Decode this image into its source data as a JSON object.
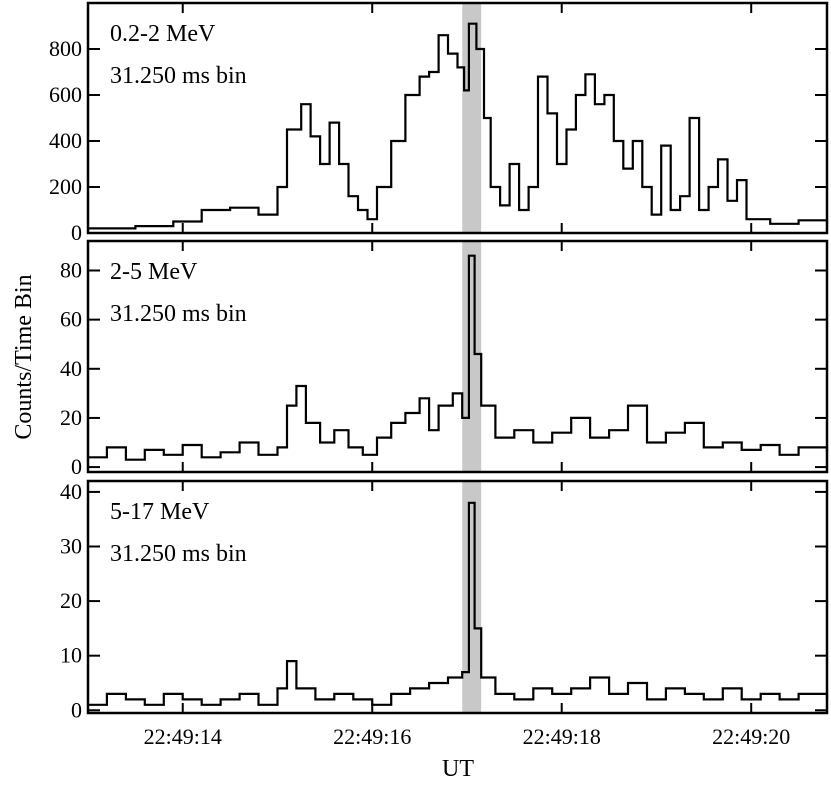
{
  "chart_data": {
    "type": "line",
    "y_axis_label": "Counts/Time Bin",
    "x_axis_label": "UT",
    "x_tick_labels": [
      "22:49:14",
      "22:49:16",
      "22:49:18",
      "22:49:20"
    ],
    "x_ticks_seconds": [
      14,
      16,
      18,
      20
    ],
    "x_range_seconds": [
      13.0,
      20.8
    ],
    "highlight_band_seconds": [
      16.95,
      17.15
    ],
    "highlight_color": "#c8c8c8",
    "line_color": "#000000",
    "panels": [
      {
        "energy_label": "0.2-2 MeV",
        "bin_label": "31.250 ms bin",
        "ylim": [
          0,
          1000
        ],
        "y_ticks": [
          0,
          200,
          400,
          600,
          800
        ],
        "series": [
          {
            "x": 13.0,
            "y": 20
          },
          {
            "x": 13.5,
            "y": 30
          },
          {
            "x": 13.9,
            "y": 50
          },
          {
            "x": 14.2,
            "y": 100
          },
          {
            "x": 14.5,
            "y": 110
          },
          {
            "x": 14.8,
            "y": 80
          },
          {
            "x": 15.0,
            "y": 200
          },
          {
            "x": 15.1,
            "y": 450
          },
          {
            "x": 15.25,
            "y": 560
          },
          {
            "x": 15.35,
            "y": 420
          },
          {
            "x": 15.45,
            "y": 300
          },
          {
            "x": 15.55,
            "y": 480
          },
          {
            "x": 15.65,
            "y": 300
          },
          {
            "x": 15.75,
            "y": 160
          },
          {
            "x": 15.85,
            "y": 100
          },
          {
            "x": 15.95,
            "y": 60
          },
          {
            "x": 16.05,
            "y": 200
          },
          {
            "x": 16.2,
            "y": 400
          },
          {
            "x": 16.35,
            "y": 600
          },
          {
            "x": 16.5,
            "y": 680
          },
          {
            "x": 16.6,
            "y": 700
          },
          {
            "x": 16.7,
            "y": 860
          },
          {
            "x": 16.8,
            "y": 780
          },
          {
            "x": 16.9,
            "y": 720
          },
          {
            "x": 16.97,
            "y": 620
          },
          {
            "x": 17.02,
            "y": 910
          },
          {
            "x": 17.1,
            "y": 800
          },
          {
            "x": 17.18,
            "y": 500
          },
          {
            "x": 17.25,
            "y": 200
          },
          {
            "x": 17.35,
            "y": 120
          },
          {
            "x": 17.45,
            "y": 300
          },
          {
            "x": 17.55,
            "y": 100
          },
          {
            "x": 17.65,
            "y": 200
          },
          {
            "x": 17.75,
            "y": 680
          },
          {
            "x": 17.85,
            "y": 520
          },
          {
            "x": 17.95,
            "y": 300
          },
          {
            "x": 18.05,
            "y": 450
          },
          {
            "x": 18.15,
            "y": 600
          },
          {
            "x": 18.25,
            "y": 690
          },
          {
            "x": 18.35,
            "y": 560
          },
          {
            "x": 18.45,
            "y": 600
          },
          {
            "x": 18.55,
            "y": 400
          },
          {
            "x": 18.65,
            "y": 280
          },
          {
            "x": 18.75,
            "y": 400
          },
          {
            "x": 18.85,
            "y": 200
          },
          {
            "x": 18.95,
            "y": 80
          },
          {
            "x": 19.05,
            "y": 380
          },
          {
            "x": 19.15,
            "y": 100
          },
          {
            "x": 19.25,
            "y": 160
          },
          {
            "x": 19.35,
            "y": 500
          },
          {
            "x": 19.45,
            "y": 100
          },
          {
            "x": 19.55,
            "y": 200
          },
          {
            "x": 19.65,
            "y": 320
          },
          {
            "x": 19.75,
            "y": 140
          },
          {
            "x": 19.85,
            "y": 230
          },
          {
            "x": 19.95,
            "y": 60
          },
          {
            "x": 20.2,
            "y": 40
          },
          {
            "x": 20.5,
            "y": 55
          },
          {
            "x": 20.8,
            "y": 40
          }
        ]
      },
      {
        "energy_label": "2-5 MeV",
        "bin_label": "31.250 ms bin",
        "ylim": [
          -2,
          92
        ],
        "y_ticks": [
          0,
          20,
          40,
          60,
          80
        ],
        "series": [
          {
            "x": 13.0,
            "y": 4
          },
          {
            "x": 13.2,
            "y": 8
          },
          {
            "x": 13.4,
            "y": 3
          },
          {
            "x": 13.6,
            "y": 7
          },
          {
            "x": 13.8,
            "y": 5
          },
          {
            "x": 14.0,
            "y": 9
          },
          {
            "x": 14.2,
            "y": 4
          },
          {
            "x": 14.4,
            "y": 6
          },
          {
            "x": 14.6,
            "y": 10
          },
          {
            "x": 14.8,
            "y": 5
          },
          {
            "x": 15.0,
            "y": 8
          },
          {
            "x": 15.1,
            "y": 25
          },
          {
            "x": 15.2,
            "y": 33
          },
          {
            "x": 15.3,
            "y": 18
          },
          {
            "x": 15.45,
            "y": 10
          },
          {
            "x": 15.6,
            "y": 15
          },
          {
            "x": 15.75,
            "y": 8
          },
          {
            "x": 15.9,
            "y": 5
          },
          {
            "x": 16.05,
            "y": 12
          },
          {
            "x": 16.2,
            "y": 18
          },
          {
            "x": 16.35,
            "y": 22
          },
          {
            "x": 16.5,
            "y": 28
          },
          {
            "x": 16.6,
            "y": 15
          },
          {
            "x": 16.7,
            "y": 25
          },
          {
            "x": 16.85,
            "y": 30
          },
          {
            "x": 16.95,
            "y": 20
          },
          {
            "x": 17.02,
            "y": 86
          },
          {
            "x": 17.08,
            "y": 46
          },
          {
            "x": 17.15,
            "y": 25
          },
          {
            "x": 17.3,
            "y": 12
          },
          {
            "x": 17.5,
            "y": 15
          },
          {
            "x": 17.7,
            "y": 10
          },
          {
            "x": 17.9,
            "y": 14
          },
          {
            "x": 18.1,
            "y": 20
          },
          {
            "x": 18.3,
            "y": 12
          },
          {
            "x": 18.5,
            "y": 15
          },
          {
            "x": 18.7,
            "y": 25
          },
          {
            "x": 18.9,
            "y": 10
          },
          {
            "x": 19.1,
            "y": 14
          },
          {
            "x": 19.3,
            "y": 18
          },
          {
            "x": 19.5,
            "y": 8
          },
          {
            "x": 19.7,
            "y": 10
          },
          {
            "x": 19.9,
            "y": 7
          },
          {
            "x": 20.1,
            "y": 9
          },
          {
            "x": 20.3,
            "y": 5
          },
          {
            "x": 20.5,
            "y": 8
          },
          {
            "x": 20.8,
            "y": 6
          }
        ]
      },
      {
        "energy_label": "5-17 MeV",
        "bin_label": "31.250 ms bin",
        "ylim": [
          -0.5,
          42
        ],
        "y_ticks": [
          0,
          10,
          20,
          30,
          40
        ],
        "series": [
          {
            "x": 13.0,
            "y": 1
          },
          {
            "x": 13.2,
            "y": 3
          },
          {
            "x": 13.4,
            "y": 2
          },
          {
            "x": 13.6,
            "y": 1
          },
          {
            "x": 13.8,
            "y": 3
          },
          {
            "x": 14.0,
            "y": 2
          },
          {
            "x": 14.2,
            "y": 1
          },
          {
            "x": 14.4,
            "y": 2
          },
          {
            "x": 14.6,
            "y": 3
          },
          {
            "x": 14.8,
            "y": 1
          },
          {
            "x": 15.0,
            "y": 4
          },
          {
            "x": 15.1,
            "y": 9
          },
          {
            "x": 15.2,
            "y": 4
          },
          {
            "x": 15.4,
            "y": 2
          },
          {
            "x": 15.6,
            "y": 3
          },
          {
            "x": 15.8,
            "y": 2
          },
          {
            "x": 16.0,
            "y": 1
          },
          {
            "x": 16.2,
            "y": 3
          },
          {
            "x": 16.4,
            "y": 4
          },
          {
            "x": 16.6,
            "y": 5
          },
          {
            "x": 16.8,
            "y": 6
          },
          {
            "x": 16.95,
            "y": 7
          },
          {
            "x": 17.02,
            "y": 38
          },
          {
            "x": 17.08,
            "y": 15
          },
          {
            "x": 17.15,
            "y": 6
          },
          {
            "x": 17.3,
            "y": 3
          },
          {
            "x": 17.5,
            "y": 2
          },
          {
            "x": 17.7,
            "y": 4
          },
          {
            "x": 17.9,
            "y": 3
          },
          {
            "x": 18.1,
            "y": 4
          },
          {
            "x": 18.3,
            "y": 6
          },
          {
            "x": 18.5,
            "y": 3
          },
          {
            "x": 18.7,
            "y": 5
          },
          {
            "x": 18.9,
            "y": 2
          },
          {
            "x": 19.1,
            "y": 4
          },
          {
            "x": 19.3,
            "y": 3
          },
          {
            "x": 19.5,
            "y": 2
          },
          {
            "x": 19.7,
            "y": 4
          },
          {
            "x": 19.9,
            "y": 2
          },
          {
            "x": 20.1,
            "y": 3
          },
          {
            "x": 20.3,
            "y": 2
          },
          {
            "x": 20.5,
            "y": 3
          },
          {
            "x": 20.8,
            "y": 2
          }
        ]
      }
    ]
  }
}
